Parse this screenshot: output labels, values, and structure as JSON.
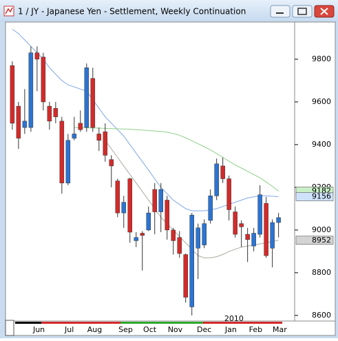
{
  "window": {
    "title": "1 / JY - Japanese Yen - Settlement, Weekly Continuation"
  },
  "chart_data": {
    "type": "candlestick",
    "open": [
      9770,
      9580,
      9480,
      9480,
      9830,
      9810,
      9580,
      9570,
      9510,
      9220,
      9430,
      9500,
      9480,
      9710,
      9450,
      9460,
      9330,
      9230,
      9080,
      9240,
      8950,
      8985,
      9000,
      9190,
      9085,
      9140,
      9000,
      8965,
      8885,
      8640,
      8915,
      8930,
      9045,
      9160,
      9300,
      9240,
      9085,
      9030,
      8980,
      8925,
      8980,
      9125,
      8915,
      9035
    ],
    "high": [
      9790,
      9600,
      9660,
      9860,
      9860,
      9830,
      9600,
      9600,
      9530,
      9450,
      9530,
      9560,
      9780,
      9760,
      9480,
      9500,
      9350,
      9240,
      9160,
      9245,
      8990,
      8995,
      9110,
      9220,
      9220,
      9160,
      9010,
      8995,
      8890,
      9080,
      9030,
      9050,
      9190,
      9335,
      9340,
      9255,
      9110,
      9045,
      9010,
      9010,
      9210,
      9155,
      9050,
      9080
    ],
    "low": [
      9470,
      9380,
      9450,
      9460,
      9650,
      9560,
      9470,
      9500,
      9170,
      9210,
      9420,
      9460,
      9460,
      9460,
      9370,
      9320,
      9200,
      9060,
      9010,
      8940,
      8920,
      8810,
      8995,
      8980,
      8990,
      8955,
      8885,
      8870,
      8660,
      8600,
      8770,
      8915,
      9030,
      9140,
      9220,
      9045,
      8965,
      8920,
      8850,
      8900,
      8965,
      8870,
      8825,
      8965
    ],
    "close": [
      9500,
      9430,
      9510,
      9830,
      9800,
      9600,
      9510,
      9530,
      9220,
      9420,
      9450,
      9470,
      9760,
      9480,
      9420,
      9350,
      9300,
      9080,
      9130,
      8990,
      8965,
      8975,
      9080,
      9085,
      9190,
      9000,
      8950,
      8890,
      8685,
      9070,
      9010,
      9030,
      9160,
      9310,
      9240,
      9095,
      8980,
      9015,
      8955,
      8985,
      9165,
      8880,
      9035,
      9058
    ],
    "up_color": "#2c74d2",
    "down_color": "#d42a2a",
    "overlays": [
      {
        "color": "#7fa6e6",
        "values": [
          9940,
          9920,
          9890,
          9860,
          9830,
          9800,
          9760,
          9730,
          9700,
          9680,
          9670,
          9660,
          9650,
          9610,
          9570,
          9530,
          9500,
          9470,
          9440,
          9400,
          9360,
          9320,
          9280,
          9240,
          9200,
          9170,
          9140,
          9120,
          9100,
          9090,
          9090,
          9090,
          9095,
          9100,
          9110,
          9120,
          9130,
          9140,
          9150,
          9155,
          9160,
          9160,
          9158,
          9156
        ]
      },
      {
        "color": "#8fcf8a",
        "values": [
          null,
          null,
          null,
          null,
          null,
          null,
          null,
          null,
          null,
          null,
          9480,
          9480,
          9479,
          9478,
          9477,
          9476,
          9475,
          9474,
          9473,
          9472,
          9470,
          9468,
          9466,
          9464,
          9462,
          9458,
          9452,
          9444,
          9432,
          9418,
          9404,
          9390,
          9375,
          9358,
          9340,
          9322,
          9305,
          9290,
          9275,
          9260,
          9245,
          9225,
          9205,
          9182
        ]
      },
      {
        "color": "#a9a9a0",
        "values": [
          null,
          null,
          null,
          null,
          null,
          null,
          null,
          null,
          null,
          null,
          null,
          null,
          null,
          null,
          null,
          9420,
          9380,
          9340,
          9300,
          9260,
          9220,
          9180,
          9140,
          9100,
          9060,
          9030,
          9000,
          8970,
          8940,
          8910,
          8880,
          8870,
          8870,
          8875,
          8885,
          8900,
          8910,
          8920,
          8925,
          8930,
          8935,
          8940,
          8946,
          8952
        ]
      }
    ],
    "ylim": [
      8577,
      9974
    ],
    "yticks": [
      8600,
      8800,
      9000,
      9200,
      9400,
      9600,
      9800
    ],
    "xlim": [
      -1.1,
      45.6
    ],
    "xticks": [
      {
        "value": 4.3,
        "label": "Jun"
      },
      {
        "value": 9.2,
        "label": "Jul"
      },
      {
        "value": 13.3,
        "label": "Aug"
      },
      {
        "value": 18.3,
        "label": "Sep"
      },
      {
        "value": 22.2,
        "label": "Oct"
      },
      {
        "value": 26.3,
        "label": "Nov"
      },
      {
        "value": 31,
        "label": "Dec"
      },
      {
        "value": 35.3,
        "label": "Jan"
      },
      {
        "value": 39.3,
        "label": "Feb"
      },
      {
        "value": 43.2,
        "label": "Mar"
      }
    ],
    "year_label": {
      "value": 35.8,
      "label": "2010"
    }
  }
}
